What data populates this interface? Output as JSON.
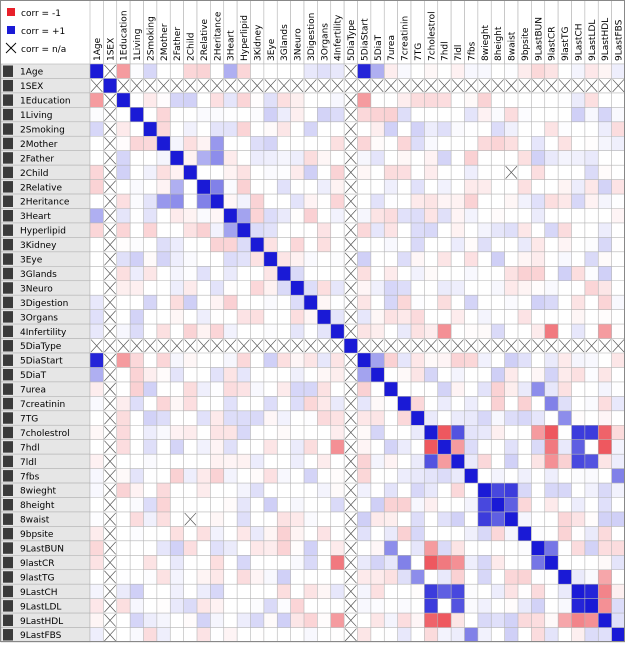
{
  "legend": {
    "items": [
      {
        "swatch": "#e8202a",
        "label": "corr = -1"
      },
      {
        "swatch": "#1a1ad6",
        "label": "corr = +1"
      },
      {
        "swatch": "x-icon",
        "label": "corr = n/a"
      }
    ]
  },
  "colors": {
    "neg": "#e8202a",
    "pos": "#1a1ad6",
    "rowHeader": "#e6e6e6",
    "rowMarker": "#3a3a3a",
    "grid": "#b4b4b4"
  },
  "chart_data": {
    "type": "heatmap",
    "variables": [
      "1Age",
      "1SEX",
      "1Education",
      "1Living",
      "2Smoking",
      "2Mother",
      "2Father",
      "2Child",
      "2Relative",
      "2Heritance",
      "3Heart",
      "Hyperlipid",
      "3Kidney",
      "3Eye",
      "3Glands",
      "3Neuro",
      "3Digestion",
      "3Organs",
      "4Infertility",
      "5DiaType",
      "5DiaStart",
      "5DiaT",
      "7urea",
      "7creatinin",
      "7TG",
      "7cholestrol",
      "7hdl",
      "7ldl",
      "7fbs",
      "8wieght",
      "8height",
      "8waist",
      "9bpsite",
      "9LastBUN",
      "9lastCR",
      "9lastTG",
      "9LastCH",
      "9LastLDL",
      "9LastHDL",
      "9LastFBS"
    ],
    "value_range": [
      -1,
      1
    ],
    "na_pairs": [
      [
        7,
        31
      ],
      [
        31,
        7
      ]
    ],
    "na_variables": [
      "1SEX",
      "5DiaType"
    ],
    "strong": [
      [
        0,
        20,
        0.95
      ],
      [
        0,
        2,
        -0.45
      ],
      [
        2,
        20,
        -0.45
      ],
      [
        25,
        26,
        -0.75
      ],
      [
        25,
        27,
        0.75
      ],
      [
        25,
        33,
        -0.45
      ],
      [
        25,
        34,
        -0.75
      ],
      [
        25,
        36,
        0.85
      ],
      [
        25,
        37,
        0.85
      ],
      [
        25,
        38,
        -0.7
      ],
      [
        26,
        34,
        -0.6
      ],
      [
        26,
        36,
        0.7
      ],
      [
        26,
        38,
        -0.75
      ],
      [
        27,
        36,
        0.8
      ],
      [
        27,
        37,
        0.75
      ],
      [
        27,
        34,
        -0.5
      ],
      [
        29,
        30,
        0.8
      ],
      [
        29,
        31,
        0.85
      ],
      [
        30,
        31,
        0.7
      ],
      [
        18,
        26,
        -0.5
      ],
      [
        18,
        34,
        -0.6
      ],
      [
        18,
        38,
        -0.45
      ],
      [
        36,
        37,
        0.95
      ],
      [
        36,
        38,
        -0.55
      ],
      [
        37,
        38,
        -0.5
      ],
      [
        33,
        34,
        0.6
      ],
      [
        35,
        38,
        -0.4
      ],
      [
        28,
        39,
        0.55
      ],
      [
        24,
        35,
        0.5
      ],
      [
        22,
        33,
        0.5
      ],
      [
        23,
        34,
        0.55
      ],
      [
        10,
        11,
        0.4
      ],
      [
        5,
        9,
        0.45
      ],
      [
        6,
        9,
        0.5
      ],
      [
        8,
        9,
        0.55
      ],
      [
        6,
        8,
        0.35
      ],
      [
        0,
        10,
        0.35
      ],
      [
        0,
        21,
        0.35
      ],
      [
        20,
        21,
        0.4
      ],
      [
        26,
        27,
        -0.45
      ]
    ],
    "grid": false,
    "legend_placement": "top-left"
  }
}
